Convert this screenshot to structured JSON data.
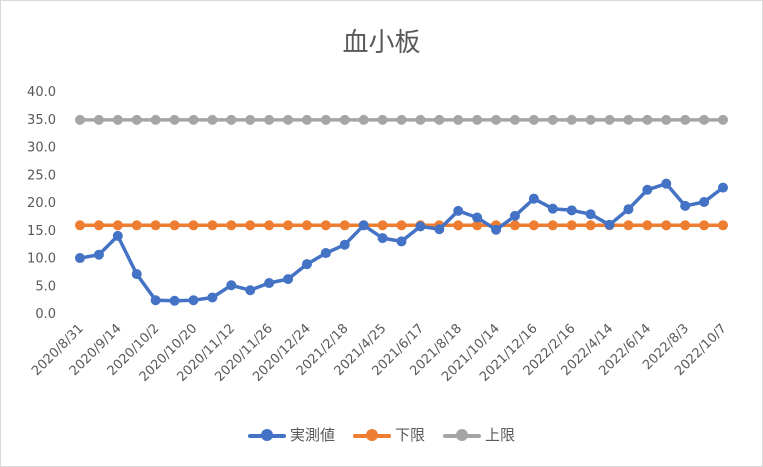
{
  "chart_data": {
    "type": "line",
    "title": "血小板",
    "xlabel": "",
    "ylabel": "",
    "ylim": [
      0,
      40
    ],
    "yticks": [
      "0.0",
      "5.0",
      "10.0",
      "15.0",
      "20.0",
      "25.0",
      "30.0",
      "35.0",
      "40.0"
    ],
    "grid": false,
    "legend_position": "bottom",
    "x": [
      "2020/8/31",
      "2020/9/7",
      "2020/9/14",
      "2020/9/24",
      "2020/10/2",
      "2020/10/12",
      "2020/10/20",
      "2020/11/2",
      "2020/11/12",
      "2020/11/19",
      "2020/11/26",
      "2020/12/10",
      "2020/12/24",
      "2021/1/21",
      "2021/2/18",
      "2021/3/18",
      "2021/4/25",
      "2021/5/20",
      "2021/6/17",
      "2021/7/15",
      "2021/8/18",
      "2021/9/15",
      "2021/10/14",
      "2021/11/11",
      "2021/12/16",
      "2022/1/20",
      "2022/2/16",
      "2022/3/16",
      "2022/4/14",
      "2022/5/12",
      "2022/6/14",
      "2022/7/12",
      "2022/8/3",
      "2022/9/7",
      "2022/10/7"
    ],
    "xtick_labels": [
      "2020/8/31",
      "2020/9/14",
      "2020/10/2",
      "2020/10/20",
      "2020/11/12",
      "2020/11/26",
      "2020/12/24",
      "2021/2/18",
      "2021/4/25",
      "2021/6/17",
      "2021/8/18",
      "2021/10/14",
      "2021/12/16",
      "2022/2/16",
      "2022/4/14",
      "2022/6/14",
      "2022/8/3",
      "2022/10/7"
    ],
    "series": [
      {
        "name": "実測値",
        "color": "#4472c4",
        "values": [
          9.9,
          10.5,
          13.9,
          7.0,
          2.3,
          2.2,
          2.3,
          2.8,
          5.0,
          4.1,
          5.4,
          6.1,
          8.8,
          10.8,
          12.3,
          15.8,
          13.5,
          12.9,
          15.6,
          15.1,
          18.4,
          17.2,
          15.0,
          17.5,
          20.6,
          18.8,
          18.5,
          17.8,
          15.9,
          18.7,
          22.2,
          23.3,
          19.3,
          20.0,
          22.6
        ]
      },
      {
        "name": "下限",
        "color": "#ed7d31",
        "values": [
          15.8,
          15.8,
          15.8,
          15.8,
          15.8,
          15.8,
          15.8,
          15.8,
          15.8,
          15.8,
          15.8,
          15.8,
          15.8,
          15.8,
          15.8,
          15.8,
          15.8,
          15.8,
          15.8,
          15.8,
          15.8,
          15.8,
          15.8,
          15.8,
          15.8,
          15.8,
          15.8,
          15.8,
          15.8,
          15.8,
          15.8,
          15.8,
          15.8,
          15.8,
          15.8
        ]
      },
      {
        "name": "上限",
        "color": "#a5a5a5",
        "values": [
          34.8,
          34.8,
          34.8,
          34.8,
          34.8,
          34.8,
          34.8,
          34.8,
          34.8,
          34.8,
          34.8,
          34.8,
          34.8,
          34.8,
          34.8,
          34.8,
          34.8,
          34.8,
          34.8,
          34.8,
          34.8,
          34.8,
          34.8,
          34.8,
          34.8,
          34.8,
          34.8,
          34.8,
          34.8,
          34.8,
          34.8,
          34.8,
          34.8,
          34.8,
          34.8
        ]
      }
    ]
  }
}
